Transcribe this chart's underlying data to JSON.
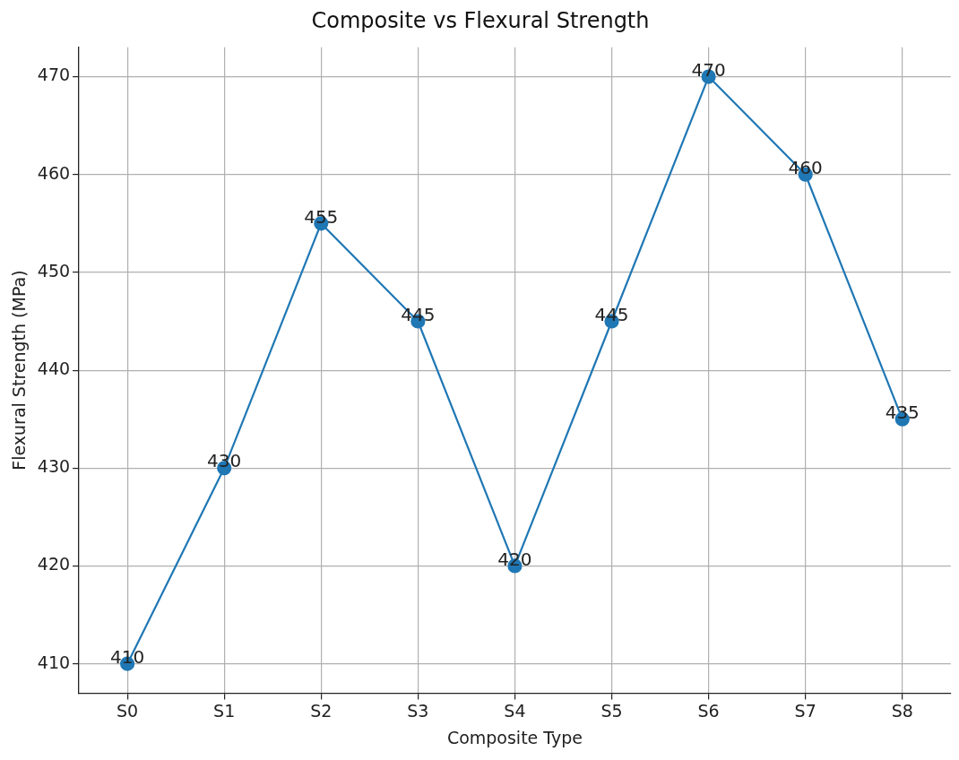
{
  "chart_data": {
    "type": "line",
    "title": "Composite vs Flexural Strength",
    "xlabel": "Composite Type",
    "ylabel": "Flexural Strength (MPa)",
    "categories": [
      "S0",
      "S1",
      "S2",
      "S3",
      "S4",
      "S5",
      "S6",
      "S7",
      "S8"
    ],
    "values": [
      410,
      430,
      455,
      445,
      420,
      445,
      470,
      460,
      435
    ],
    "color": "#1f77b4",
    "ylim": [
      407,
      473
    ],
    "yticks": [
      410,
      420,
      430,
      440,
      450,
      460,
      470
    ],
    "grid": true,
    "marker": "circle",
    "line_style": "solid",
    "data_labels": true
  }
}
